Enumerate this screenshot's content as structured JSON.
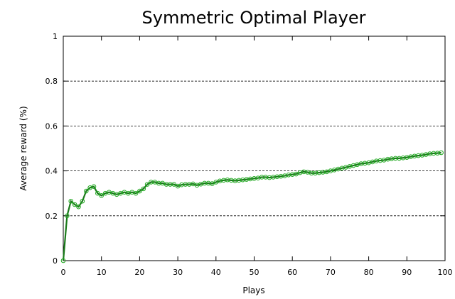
{
  "chart_data": {
    "type": "line",
    "title": "Symmetric Optimal Player",
    "xlabel": "Plays",
    "ylabel": "Average reward (%)",
    "xlim": [
      0,
      100
    ],
    "ylim": [
      0,
      1
    ],
    "x_ticks": [
      "0",
      "10",
      "20",
      "30",
      "40",
      "50",
      "60",
      "70",
      "80",
      "90",
      "100"
    ],
    "y_ticks": [
      "0",
      "0.2",
      "0.4",
      "0.6",
      "0.8",
      "1"
    ],
    "grid": "horizontal-dashed",
    "legend": "none",
    "colors": {
      "line": "#1a7a1a",
      "marker": "#22aa22"
    },
    "series": [
      {
        "x": [
          0,
          1,
          2,
          3,
          4,
          5,
          6,
          7,
          8,
          9,
          10,
          11,
          12,
          13,
          14,
          15,
          16,
          17,
          18,
          19,
          20,
          21,
          22,
          23,
          24,
          25,
          26,
          27,
          28,
          29,
          30,
          31,
          32,
          33,
          34,
          35,
          36,
          37,
          38,
          39,
          40,
          41,
          42,
          43,
          44,
          45,
          46,
          47,
          48,
          49,
          50,
          51,
          52,
          53,
          54,
          55,
          56,
          57,
          58,
          59,
          60,
          61,
          62,
          63,
          64,
          65,
          66,
          67,
          68,
          69,
          70,
          71,
          72,
          73,
          74,
          75,
          76,
          77,
          78,
          79,
          80,
          81,
          82,
          83,
          84,
          85,
          86,
          87,
          88,
          89,
          90,
          91,
          92,
          93,
          94,
          95,
          96,
          97,
          98,
          99
        ],
        "values": [
          0.0,
          0.2,
          0.265,
          0.25,
          0.24,
          0.265,
          0.31,
          0.325,
          0.33,
          0.3,
          0.29,
          0.3,
          0.305,
          0.3,
          0.295,
          0.3,
          0.305,
          0.3,
          0.305,
          0.3,
          0.31,
          0.32,
          0.34,
          0.35,
          0.35,
          0.345,
          0.345,
          0.34,
          0.34,
          0.34,
          0.332,
          0.338,
          0.34,
          0.34,
          0.342,
          0.336,
          0.341,
          0.345,
          0.345,
          0.343,
          0.35,
          0.355,
          0.358,
          0.36,
          0.358,
          0.356,
          0.358,
          0.36,
          0.362,
          0.364,
          0.366,
          0.368,
          0.372,
          0.372,
          0.37,
          0.372,
          0.374,
          0.376,
          0.378,
          0.382,
          0.384,
          0.386,
          0.392,
          0.396,
          0.394,
          0.39,
          0.39,
          0.392,
          0.394,
          0.396,
          0.4,
          0.404,
          0.408,
          0.412,
          0.416,
          0.42,
          0.424,
          0.428,
          0.432,
          0.434,
          0.436,
          0.44,
          0.444,
          0.446,
          0.448,
          0.452,
          0.454,
          0.456,
          0.456,
          0.458,
          0.46,
          0.463,
          0.466,
          0.468,
          0.47,
          0.473,
          0.476,
          0.478,
          0.479,
          0.481
        ]
      }
    ]
  }
}
